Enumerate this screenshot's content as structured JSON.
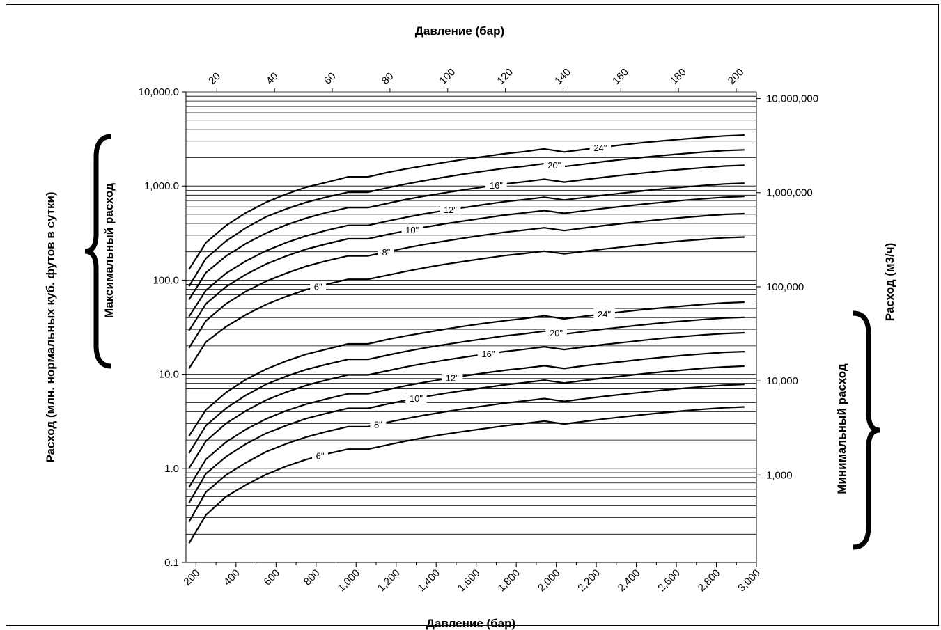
{
  "chart_data": {
    "type": "line",
    "top_axis_label": "Давление (бар)",
    "bottom_axis_label": "Давление (бар)",
    "left_axis_label": "Расход (млн. нормальных куб. футов в сутки)",
    "right_axis_label": "Расход (м3/ч)",
    "bracket_max_label": "Максимальный расход",
    "bracket_min_label": "Минимальный расход",
    "x_scale": "linear",
    "y_scale": "log",
    "xlim": [
      150,
      3000
    ],
    "ylim": [
      0.1,
      10000
    ],
    "x_ticks": [
      {
        "v": 200,
        "label": "200"
      },
      {
        "v": 400,
        "label": "400"
      },
      {
        "v": 600,
        "label": "600"
      },
      {
        "v": 800,
        "label": "800"
      },
      {
        "v": 1000,
        "label": "1,000"
      },
      {
        "v": 1200,
        "label": "1,200"
      },
      {
        "v": 1400,
        "label": "1,400"
      },
      {
        "v": 1600,
        "label": "1,600"
      },
      {
        "v": 1800,
        "label": "1,800"
      },
      {
        "v": 2000,
        "label": "2,000"
      },
      {
        "v": 2200,
        "label": "2,200"
      },
      {
        "v": 2400,
        "label": "2,400"
      },
      {
        "v": 2600,
        "label": "2,600"
      },
      {
        "v": 2800,
        "label": "2,800"
      },
      {
        "v": 3000,
        "label": "3,000"
      }
    ],
    "top_ticks": [
      {
        "v": 20,
        "label": "20"
      },
      {
        "v": 40,
        "label": "40"
      },
      {
        "v": 60,
        "label": "60"
      },
      {
        "v": 80,
        "label": "80"
      },
      {
        "v": 100,
        "label": "100"
      },
      {
        "v": 120,
        "label": "120"
      },
      {
        "v": 140,
        "label": "140"
      },
      {
        "v": 160,
        "label": "160"
      },
      {
        "v": 180,
        "label": "180"
      },
      {
        "v": 200,
        "label": "200"
      }
    ],
    "y_ticks": [
      {
        "v": 0.1,
        "label": "0.1"
      },
      {
        "v": 1,
        "label": "1.0"
      },
      {
        "v": 10,
        "label": "10.0"
      },
      {
        "v": 100,
        "label": "100.0"
      },
      {
        "v": 1000,
        "label": "1,000.0"
      },
      {
        "v": 10000,
        "label": "10,000.0"
      }
    ],
    "right_ticks": [
      {
        "v": 0.85,
        "label": "1,000"
      },
      {
        "v": 8.5,
        "label": "10,000"
      },
      {
        "v": 85,
        "label": "100,000"
      },
      {
        "v": 850,
        "label": "1,000,000"
      },
      {
        "v": 8500,
        "label": "10,000,000"
      }
    ],
    "x": [
      165,
      250,
      350,
      450,
      550,
      650,
      750,
      850,
      960,
      1060,
      1160,
      1250,
      1340,
      1440,
      1540,
      1640,
      1740,
      1840,
      1940,
      2040,
      2140,
      2240,
      2340,
      2440,
      2540,
      2640,
      2740,
      2840,
      2940
    ],
    "series": [
      {
        "group": "max",
        "name": "24\"",
        "values": [
          130,
          250,
          380,
          520,
          670,
          820,
          970,
          1090,
          1250,
          1250,
          1400,
          1520,
          1640,
          1780,
          1920,
          2060,
          2200,
          2320,
          2480,
          2300,
          2450,
          2600,
          2750,
          2900,
          3030,
          3160,
          3290,
          3400,
          3470
        ]
      },
      {
        "group": "max",
        "name": "20\"",
        "values": [
          86,
          170,
          260,
          360,
          470,
          570,
          670,
          760,
          860,
          860,
          960,
          1050,
          1140,
          1240,
          1340,
          1440,
          1540,
          1620,
          1730,
          1610,
          1710,
          1820,
          1920,
          2020,
          2120,
          2210,
          2300,
          2380,
          2420
        ]
      },
      {
        "group": "max",
        "name": "16\"",
        "values": [
          62,
          120,
          180,
          245,
          315,
          385,
          455,
          520,
          590,
          590,
          655,
          720,
          780,
          845,
          910,
          980,
          1050,
          1110,
          1180,
          1100,
          1170,
          1240,
          1310,
          1380,
          1450,
          1510,
          1570,
          1630,
          1660
        ]
      },
      {
        "group": "max",
        "name": "12\"",
        "values": [
          41,
          78,
          118,
          160,
          205,
          250,
          295,
          337,
          382,
          382,
          425,
          465,
          505,
          548,
          590,
          635,
          680,
          718,
          760,
          710,
          755,
          800,
          845,
          890,
          935,
          975,
          1015,
          1050,
          1070
        ]
      },
      {
        "group": "max",
        "name": "10\"",
        "values": [
          29,
          56,
          85,
          115,
          148,
          180,
          213,
          242,
          275,
          275,
          306,
          335,
          364,
          395,
          425,
          457,
          490,
          518,
          548,
          512,
          545,
          578,
          610,
          643,
          675,
          705,
          734,
          760,
          775
        ]
      },
      {
        "group": "max",
        "name": "8\"",
        "values": [
          19,
          37,
          56,
          76,
          97,
          118,
          140,
          160,
          181,
          181,
          201,
          220,
          239,
          259,
          280,
          301,
          322,
          340,
          360,
          336,
          358,
          380,
          401,
          422,
          444,
          463,
          482,
          499,
          508
        ]
      },
      {
        "group": "max",
        "name": "6\"",
        "values": [
          11.5,
          22,
          32,
          43,
          55,
          67,
          79,
          90,
          102,
          102,
          113,
          124,
          135,
          147,
          158,
          170,
          182,
          192,
          203,
          190,
          202,
          214,
          226,
          238,
          251,
          262,
          272,
          282,
          287
        ]
      },
      {
        "group": "min",
        "name": "24\"",
        "values": [
          2.2,
          4.2,
          6.4,
          8.8,
          11.3,
          13.8,
          16.3,
          18.4,
          21,
          21,
          23.5,
          25.6,
          27.6,
          30,
          32.4,
          34.7,
          37,
          39.1,
          41.8,
          38.8,
          41.3,
          43.8,
          46.3,
          48.8,
          51,
          53.2,
          55.4,
          57.3,
          58.4
        ]
      },
      {
        "group": "min",
        "name": "20\"",
        "values": [
          1.45,
          2.85,
          4.35,
          6,
          7.8,
          9.5,
          11.2,
          12.7,
          14.4,
          14.4,
          16,
          17.5,
          19,
          20.6,
          22.2,
          23.8,
          25.5,
          26.9,
          28.7,
          26.7,
          28.4,
          30.2,
          31.9,
          33.6,
          35.3,
          36.8,
          38.3,
          39.6,
          40.3
        ]
      },
      {
        "group": "min",
        "name": "16\"",
        "values": [
          1,
          1.95,
          3,
          4.1,
          5.3,
          6.45,
          7.6,
          8.65,
          9.85,
          9.85,
          10.9,
          12,
          13,
          14.1,
          15.2,
          16.3,
          17.4,
          18.4,
          19.6,
          18.3,
          19.5,
          20.7,
          21.8,
          23,
          24.2,
          25.2,
          26.2,
          27.1,
          27.6
        ]
      },
      {
        "group": "min",
        "name": "12\"",
        "values": [
          0.63,
          1.25,
          1.9,
          2.6,
          3.35,
          4.1,
          4.8,
          5.45,
          6.2,
          6.2,
          6.9,
          7.55,
          8.2,
          8.9,
          9.6,
          10.3,
          11,
          11.6,
          12.3,
          11.5,
          12.3,
          13,
          13.7,
          14.5,
          15.2,
          15.9,
          16.5,
          17.1,
          17.4
        ]
      },
      {
        "group": "min",
        "name": "10\"",
        "values": [
          0.43,
          0.88,
          1.33,
          1.82,
          2.35,
          2.85,
          3.38,
          3.84,
          4.35,
          4.35,
          4.84,
          5.3,
          5.75,
          6.25,
          6.72,
          7.2,
          7.7,
          8.14,
          8.65,
          8.07,
          8.6,
          9.1,
          9.62,
          10.15,
          10.65,
          11.1,
          11.6,
          11.95,
          12.2
        ]
      },
      {
        "group": "min",
        "name": "8\"",
        "values": [
          0.27,
          0.56,
          0.85,
          1.15,
          1.5,
          1.82,
          2.15,
          2.45,
          2.78,
          2.78,
          3.1,
          3.38,
          3.67,
          3.98,
          4.3,
          4.6,
          4.92,
          5.2,
          5.52,
          5.15,
          5.48,
          5.82,
          6.14,
          6.47,
          6.8,
          7.1,
          7.4,
          7.65,
          7.8
        ]
      },
      {
        "group": "min",
        "name": "6\"",
        "values": [
          0.16,
          0.32,
          0.5,
          0.67,
          0.86,
          1.05,
          1.24,
          1.42,
          1.6,
          1.6,
          1.78,
          1.95,
          2.12,
          2.3,
          2.47,
          2.65,
          2.83,
          3,
          3.18,
          2.96,
          3.15,
          3.35,
          3.54,
          3.73,
          3.92,
          4.09,
          4.26,
          4.41,
          4.5
        ]
      }
    ],
    "series_label_positions": [
      {
        "x": 2220
      },
      {
        "x": 1990
      },
      {
        "x": 1700
      },
      {
        "x": 1470
      },
      {
        "x": 1280
      },
      {
        "x": 1150
      },
      {
        "x": 810
      },
      {
        "x": 2240
      },
      {
        "x": 2000
      },
      {
        "x": 1660
      },
      {
        "x": 1480
      },
      {
        "x": 1300
      },
      {
        "x": 1110
      },
      {
        "x": 820
      }
    ],
    "grid": true,
    "legend": "none",
    "line_color": "#000000"
  }
}
